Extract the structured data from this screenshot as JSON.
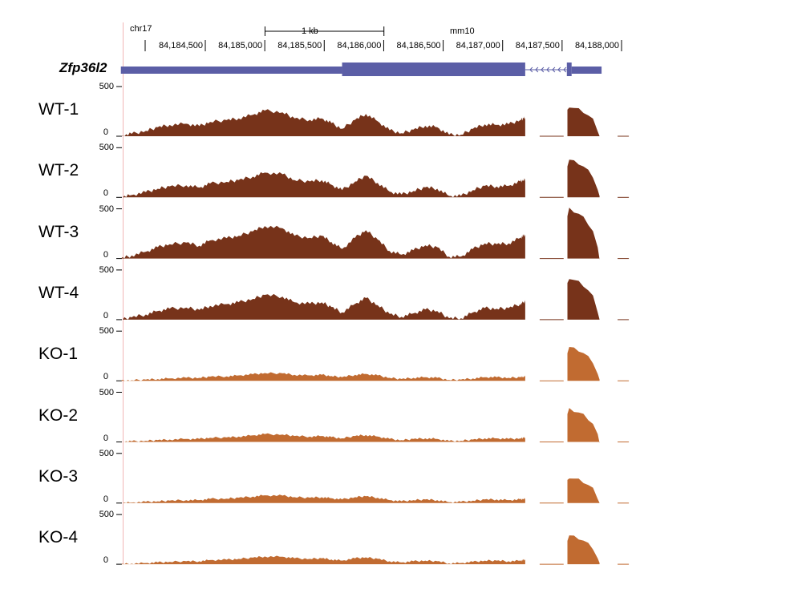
{
  "chart_data": {
    "type": "area",
    "title": "",
    "assembly": "mm10",
    "chrom": "chr17",
    "scalebar_label": "1 kb",
    "gene": {
      "name": "Zfp36l2",
      "color": "#5b5ea6",
      "start": 84183790,
      "end": 84187832,
      "thick_blocks": [
        [
          84185650,
          84187190
        ],
        [
          84187540,
          84187580
        ]
      ],
      "intron": [
        84187190,
        84187540
      ],
      "strand": "-"
    },
    "x_range": [
      84183790,
      84188000
    ],
    "x_ticks": [
      84184500,
      84185000,
      84185500,
      84186000,
      84186500,
      84187000,
      84187500,
      84188000
    ],
    "x_tick_labels": [
      "84,184,500",
      "84,185,000",
      "84,185,500",
      "84,186,000",
      "84,186,500",
      "84,187,000",
      "84,187,500",
      "84,188,000"
    ],
    "y_range": [
      0,
      500
    ],
    "y_ticks": [
      "500",
      "0"
    ],
    "x_profile": [
      84183790,
      84183880,
      84184000,
      84184100,
      84184200,
      84184340,
      84184450,
      84184540,
      84184680,
      84184780,
      84184900,
      84185000,
      84185150,
      84185250,
      84185380,
      84185480,
      84185560,
      84185650,
      84185760,
      84185850,
      84185950,
      84186050,
      84186150,
      84186250,
      84186350,
      84186450,
      84186550,
      84186650,
      84186750,
      84186850,
      84186950,
      84187050,
      84187150,
      84187175,
      84187190
    ],
    "profile_wt": [
      0,
      0.08,
      0.18,
      0.3,
      0.38,
      0.42,
      0.34,
      0.48,
      0.54,
      0.6,
      0.72,
      0.86,
      0.8,
      0.6,
      0.55,
      0.6,
      0.44,
      0.25,
      0.55,
      0.75,
      0.5,
      0.2,
      0.1,
      0.22,
      0.35,
      0.3,
      0.05,
      0.05,
      0.25,
      0.4,
      0.38,
      0.4,
      0.55,
      0.6,
      0.62
    ],
    "profile_ko": [
      0,
      0.02,
      0.04,
      0.06,
      0.08,
      0.1,
      0.1,
      0.14,
      0.15,
      0.18,
      0.22,
      0.26,
      0.25,
      0.2,
      0.18,
      0.2,
      0.16,
      0.12,
      0.2,
      0.23,
      0.18,
      0.1,
      0.06,
      0.1,
      0.12,
      0.1,
      0.03,
      0.04,
      0.08,
      0.12,
      0.12,
      0.1,
      0.12,
      0.14,
      0.15
    ],
    "x_exon2": [
      84187545,
      84187560,
      84187600,
      84187640,
      84187680,
      84187720,
      84187760,
      84187800,
      84187815
    ],
    "profile_exon2": [
      0.85,
      1.0,
      0.95,
      0.9,
      0.82,
      0.7,
      0.55,
      0.2,
      0.0
    ],
    "series": [
      {
        "name": "WT-1",
        "color": "#77331a",
        "peak": 300,
        "exon2_peak": 300
      },
      {
        "name": "WT-2",
        "color": "#77331a",
        "peak": 290,
        "exon2_peak": 380
      },
      {
        "name": "WT-3",
        "color": "#77331a",
        "peak": 380,
        "exon2_peak": 500
      },
      {
        "name": "WT-4",
        "color": "#77331a",
        "peak": 290,
        "exon2_peak": 420
      },
      {
        "name": "KO-1",
        "color": "#c16b31",
        "peak": 300,
        "exon2_peak": 340
      },
      {
        "name": "KO-2",
        "color": "#c16b31",
        "peak": 300,
        "exon2_peak": 330
      },
      {
        "name": "KO-3",
        "color": "#c16b31",
        "peak": 300,
        "exon2_peak": 260
      },
      {
        "name": "KO-4",
        "color": "#c16b31",
        "peak": 300,
        "exon2_peak": 290
      }
    ]
  }
}
